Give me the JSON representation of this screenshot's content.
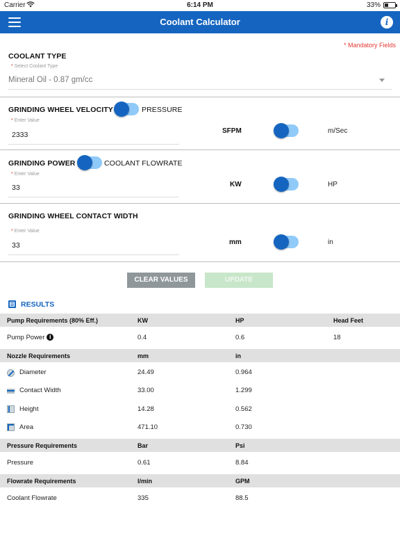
{
  "status_bar": {
    "carrier": "Carrier",
    "time": "6:14 PM",
    "battery": "33%",
    "battery_level": 0.33
  },
  "header": {
    "title": "Coolant Calculator"
  },
  "form": {
    "mandatory_note": "* Mandatory Fields",
    "coolant_type": {
      "title": "COOLANT TYPE",
      "label_star": "*",
      "label": "Select Coolant Type",
      "value": "Mineral Oil - 0.87 gm/cc"
    },
    "wheel_velocity": {
      "title": "GRINDING WHEEL VELOCITY",
      "toggle_alt": "PRESSURE",
      "label_star": "*",
      "label": "Enter Value",
      "value": "2333",
      "unit_left": "SFPM",
      "unit_right": "m/Sec"
    },
    "grinding_power": {
      "title": "GRINDING POWER",
      "toggle_alt": "COOLANT FLOWRATE",
      "label_star": "*",
      "label": "Enter Value",
      "value": "33",
      "unit_left": "KW",
      "unit_right": "HP"
    },
    "contact_width": {
      "title": "GRINDING WHEEL CONTACT WIDTH",
      "label_star": "*",
      "label": "Enter Value",
      "value": "33",
      "unit_left": "mm",
      "unit_right": "in"
    }
  },
  "buttons": {
    "clear": "CLEAR VALUES",
    "update": "UPDATE"
  },
  "results": {
    "title": "RESULTS",
    "pump": {
      "headers": [
        "Pump Requirements (80% Eff.)",
        "KW",
        "HP",
        "Head Feet"
      ],
      "row": {
        "label": "Pump Power",
        "info": "i",
        "values": [
          "0.4",
          "0.6",
          "18"
        ]
      }
    },
    "nozzle": {
      "headers": [
        "Nozzle Requirements",
        "mm",
        "in"
      ],
      "rows": [
        {
          "icon": "diameter-icon",
          "label": "Diameter",
          "values": [
            "24.49",
            "0.964"
          ]
        },
        {
          "icon": "contact-width-icon",
          "label": "Contact Width",
          "values": [
            "33.00",
            "1.299"
          ]
        },
        {
          "icon": "height-icon",
          "label": "Height",
          "values": [
            "14.28",
            "0.562"
          ]
        },
        {
          "icon": "area-icon",
          "label": "Area",
          "values": [
            "471.10",
            "0.730"
          ]
        }
      ]
    },
    "pressure": {
      "headers": [
        "Pressure Requirements",
        "Bar",
        "Psi"
      ],
      "row": {
        "label": "Pressure",
        "values": [
          "0.61",
          "8.84"
        ]
      }
    },
    "flowrate": {
      "headers": [
        "Flowrate Requirements",
        "l/min",
        "GPM"
      ],
      "row": {
        "label": "Coolant Flowrate",
        "values": [
          "335",
          "88.5"
        ]
      }
    }
  },
  "colors": {
    "primary": "#1565c0",
    "toggle_track": "#90caf9",
    "mandatory": "#e53935",
    "header_row": "#e0e0e0",
    "clear_button": "#90979b",
    "update_button": "#c8e6c9"
  }
}
